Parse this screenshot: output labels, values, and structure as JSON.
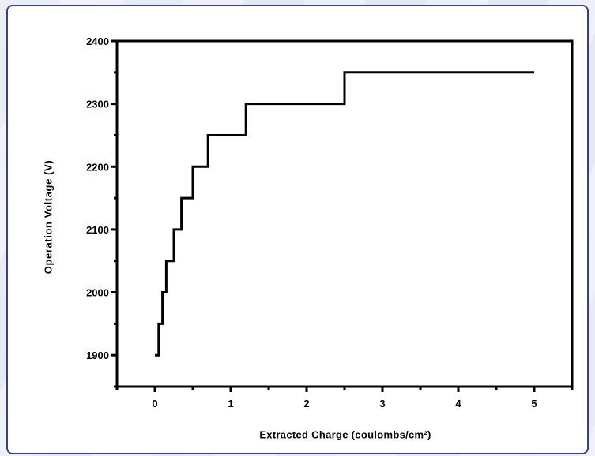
{
  "chart_data": {
    "type": "line",
    "step": true,
    "title": "",
    "xlabel": "Extracted Charge (coulombs/cm²)",
    "ylabel": "Operation Voltage (V)",
    "xlim": [
      -0.5,
      5.5
    ],
    "ylim": [
      1850,
      2400
    ],
    "x_ticks": [
      0,
      1,
      2,
      3,
      4,
      5
    ],
    "y_ticks": [
      1900,
      2000,
      2100,
      2200,
      2300,
      2400
    ],
    "x_tick_labels": [
      "0",
      "1",
      "2",
      "3",
      "4",
      "5"
    ],
    "y_tick_labels": [
      "1900",
      "2000",
      "2100",
      "2200",
      "2300",
      "2400"
    ],
    "grid": false,
    "series": [
      {
        "color": "#000000",
        "points": [
          [
            0.0,
            1900
          ],
          [
            0.05,
            1900
          ],
          [
            0.05,
            1950
          ],
          [
            0.1,
            1950
          ],
          [
            0.1,
            2000
          ],
          [
            0.15,
            2000
          ],
          [
            0.15,
            2050
          ],
          [
            0.25,
            2050
          ],
          [
            0.25,
            2100
          ],
          [
            0.35,
            2100
          ],
          [
            0.35,
            2150
          ],
          [
            0.5,
            2150
          ],
          [
            0.5,
            2200
          ],
          [
            0.7,
            2200
          ],
          [
            0.7,
            2250
          ],
          [
            1.2,
            2250
          ],
          [
            1.2,
            2300
          ],
          [
            2.5,
            2300
          ],
          [
            2.5,
            2350
          ],
          [
            5.0,
            2350
          ]
        ]
      }
    ]
  },
  "colors": {
    "frame_border": "#3b3f86",
    "line": "#000000"
  }
}
